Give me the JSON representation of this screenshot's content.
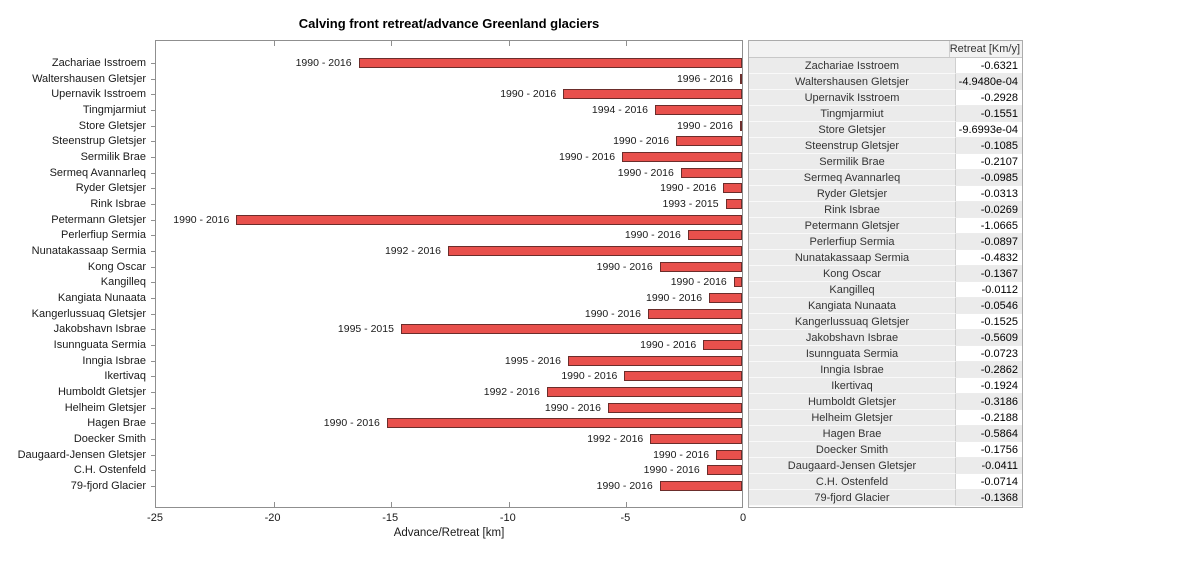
{
  "chart_data": {
    "type": "bar",
    "orientation": "horizontal",
    "title": "Calving front retreat/advance Greenland glaciers",
    "xlabel": "Advance/Retreat [km]",
    "xlim": [
      -25,
      0
    ],
    "xticks": [
      -25,
      -20,
      -15,
      -10,
      -5,
      0
    ],
    "legend": "none",
    "grid": false,
    "colors": {
      "bar_fill": "#e8504c",
      "bar_edge": "#6b2d2b",
      "axis": "#8f8f8f"
    },
    "table_header": "Retreat [Km/y]",
    "rows": [
      {
        "glacier": "Zachariae Isstroem",
        "period": "1990 - 2016",
        "retreat_km": -16.3,
        "retreat_km_per_y": "-0.6321"
      },
      {
        "glacier": "Waltershausen Gletsjer",
        "period": "1996 - 2016",
        "retreat_km": -0.01,
        "retreat_km_per_y": "-4.9480e-04"
      },
      {
        "glacier": "Upernavik Isstroem",
        "period": "1990 - 2016",
        "retreat_km": -7.6,
        "retreat_km_per_y": "-0.2928"
      },
      {
        "glacier": "Tingmjarmiut",
        "period": "1994 - 2016",
        "retreat_km": -3.7,
        "retreat_km_per_y": "-0.1551"
      },
      {
        "glacier": "Store Gletsjer",
        "period": "1990 - 2016",
        "retreat_km": -0.03,
        "retreat_km_per_y": "-9.6993e-04"
      },
      {
        "glacier": "Steenstrup Gletsjer",
        "period": "1990 - 2016",
        "retreat_km": -2.8,
        "retreat_km_per_y": "-0.1085"
      },
      {
        "glacier": "Sermilik Brae",
        "period": "1990 - 2016",
        "retreat_km": -5.1,
        "retreat_km_per_y": "-0.2107"
      },
      {
        "glacier": "Sermeq Avannarleq",
        "period": "1990 - 2016",
        "retreat_km": -2.6,
        "retreat_km_per_y": "-0.0985"
      },
      {
        "glacier": "Ryder Gletsjer",
        "period": "1990 - 2016",
        "retreat_km": -0.8,
        "retreat_km_per_y": "-0.0313"
      },
      {
        "glacier": "Rink Isbrae",
        "period": "1993 - 2015",
        "retreat_km": -0.7,
        "retreat_km_per_y": "-0.0269"
      },
      {
        "glacier": "Petermann Gletsjer",
        "period": "1990 - 2016",
        "retreat_km": -21.5,
        "retreat_km_per_y": "-1.0665"
      },
      {
        "glacier": "Perlerfiup Sermia",
        "period": "1990 - 2016",
        "retreat_km": -2.3,
        "retreat_km_per_y": "-0.0897"
      },
      {
        "glacier": "Nunatakassaap Sermia",
        "period": "1992 - 2016",
        "retreat_km": -12.5,
        "retreat_km_per_y": "-0.4832"
      },
      {
        "glacier": "Kong Oscar",
        "period": "1990 - 2016",
        "retreat_km": -3.5,
        "retreat_km_per_y": "-0.1367"
      },
      {
        "glacier": "Kangilleq",
        "period": "1990 - 2016",
        "retreat_km": -0.35,
        "retreat_km_per_y": "-0.0112"
      },
      {
        "glacier": "Kangiata Nunaata",
        "period": "1990 - 2016",
        "retreat_km": -1.4,
        "retreat_km_per_y": "-0.0546"
      },
      {
        "glacier": "Kangerlussuaq Gletsjer",
        "period": "1990 - 2016",
        "retreat_km": -4.0,
        "retreat_km_per_y": "-0.1525"
      },
      {
        "glacier": "Jakobshavn Isbrae",
        "period": "1995 - 2015",
        "retreat_km": -14.5,
        "retreat_km_per_y": "-0.5609"
      },
      {
        "glacier": "Isunnguata Sermia",
        "period": "1990 - 2016",
        "retreat_km": -1.65,
        "retreat_km_per_y": "-0.0723"
      },
      {
        "glacier": "Inngia Isbrae",
        "period": "1995 - 2016",
        "retreat_km": -7.4,
        "retreat_km_per_y": "-0.2862"
      },
      {
        "glacier": "Ikertivaq",
        "period": "1990 - 2016",
        "retreat_km": -5.0,
        "retreat_km_per_y": "-0.1924"
      },
      {
        "glacier": "Humboldt Gletsjer",
        "period": "1992 - 2016",
        "retreat_km": -8.3,
        "retreat_km_per_y": "-0.3186"
      },
      {
        "glacier": "Helheim Gletsjer",
        "period": "1990 - 2016",
        "retreat_km": -5.7,
        "retreat_km_per_y": "-0.2188"
      },
      {
        "glacier": "Hagen Brae",
        "period": "1990 - 2016",
        "retreat_km": -15.1,
        "retreat_km_per_y": "-0.5864"
      },
      {
        "glacier": "Doecker Smith",
        "period": "1992 - 2016",
        "retreat_km": -3.9,
        "retreat_km_per_y": "-0.1756"
      },
      {
        "glacier": "Daugaard-Jensen Gletsjer",
        "period": "1990 - 2016",
        "retreat_km": -1.1,
        "retreat_km_per_y": "-0.0411"
      },
      {
        "glacier": "C.H. Ostenfeld",
        "period": "1990 - 2016",
        "retreat_km": -1.5,
        "retreat_km_per_y": "-0.0714"
      },
      {
        "glacier": "79-fjord Glacier",
        "period": "1990 - 2016",
        "retreat_km": -3.5,
        "retreat_km_per_y": "-0.1368"
      }
    ]
  }
}
